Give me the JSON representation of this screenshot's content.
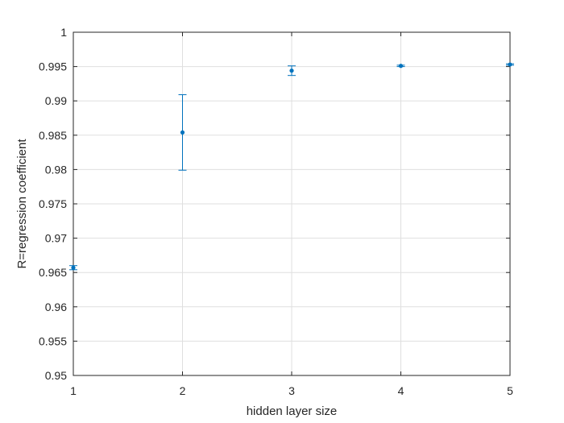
{
  "chart_data": {
    "type": "scatter",
    "xlabel": "hidden layer size",
    "ylabel": "R=regression coefficient",
    "xlim": [
      1,
      5
    ],
    "ylim": [
      0.95,
      1
    ],
    "x_ticks": [
      "1",
      "2",
      "3",
      "4",
      "5"
    ],
    "y_ticks": [
      "0.95",
      "0.955",
      "0.96",
      "0.965",
      "0.97",
      "0.975",
      "0.98",
      "0.985",
      "0.99",
      "0.995",
      "1"
    ],
    "grid": true,
    "color": "#0072bd",
    "series": [
      {
        "x": [
          1,
          2,
          3,
          4,
          5
        ],
        "y": [
          0.9657,
          0.9854,
          0.9944,
          0.9951,
          0.9953
        ],
        "err_low": [
          0.9654,
          0.9799,
          0.9937,
          0.995,
          0.9952
        ],
        "err_high": [
          0.966,
          0.9909,
          0.9951,
          0.9952,
          0.9954
        ]
      }
    ]
  }
}
